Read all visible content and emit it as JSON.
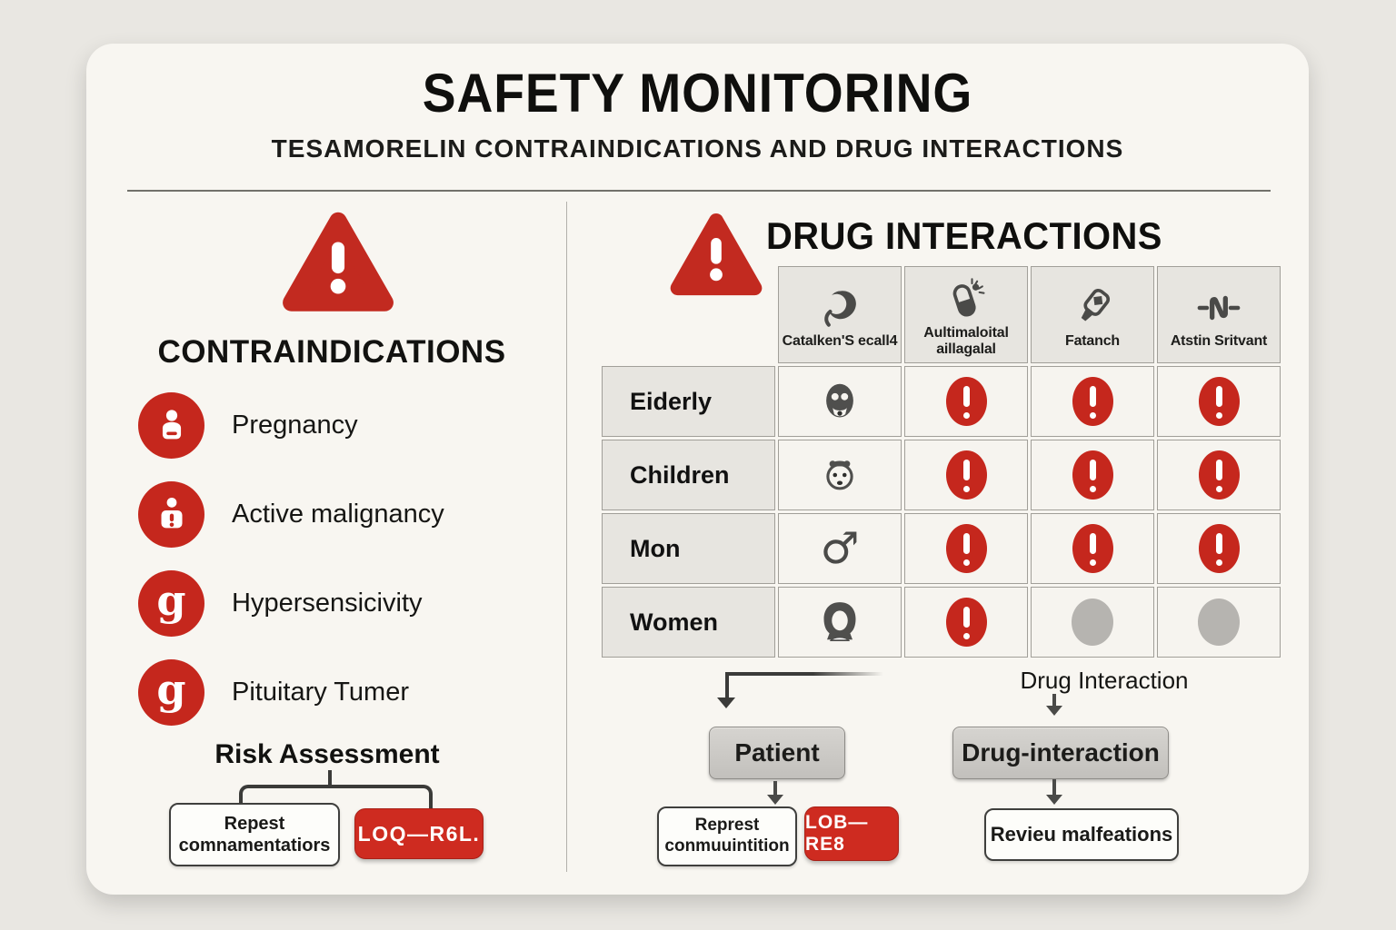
{
  "page": {
    "title": "SAFETY MONITORING",
    "subtitle": "TESAMORELIN CONTRAINDICATIONS AND DRUG INTERACTIONS"
  },
  "colors": {
    "accent_red": "#c5271d",
    "icon_gray": "#4a4a48",
    "card_bg": "#f8f6f1",
    "page_bg": "#e9e7e2"
  },
  "contraindications": {
    "heading": "CONTRAINDICATIONS",
    "warning_icon": "warning-triangle-icon",
    "items": [
      {
        "icon": "pregnant-person-icon",
        "label": "Pregnancy"
      },
      {
        "icon": "person-alert-icon",
        "label": "Active malignancy"
      },
      {
        "icon": "letter-g-icon",
        "label": "Hypersensicivity"
      },
      {
        "icon": "letter-g2-icon",
        "label": "Pituitary Tumer"
      }
    ],
    "risk_assessment": {
      "heading": "Risk Assessment",
      "repeat_box_label": "Repest\ncomnamentatiors",
      "log_button_label": "LOQ—R6L."
    }
  },
  "drug_interactions": {
    "heading": "DRUG INTERACTIONS",
    "warning_icon": "warning-triangle-icon",
    "columns": [
      {
        "icon": "comma-swirl-icon",
        "label": "Catalken'S ecall4"
      },
      {
        "icon": "pill-flower-icon",
        "label": "Aultimaloital\naillagalal"
      },
      {
        "icon": "injector-pen-icon",
        "label": "Fatanch"
      },
      {
        "icon": "wave-resistor-icon",
        "label": "Atstin Sritvant"
      }
    ],
    "rows": [
      {
        "label": "Eiderly",
        "icon": "elderly-face-icon",
        "cells": [
          "alert",
          "alert",
          "alert"
        ]
      },
      {
        "label": "Children",
        "icon": "child-face-icon",
        "cells": [
          "alert",
          "alert",
          "alert"
        ]
      },
      {
        "label": "Mon",
        "icon": "male-symbol-icon",
        "cells": [
          "alert",
          "alert",
          "alert"
        ]
      },
      {
        "label": "Women",
        "icon": "woman-face-icon",
        "cells": [
          "alert",
          "none",
          "none"
        ]
      }
    ]
  },
  "flowchart": {
    "drug_interaction_label": "Drug Interaction",
    "patient_node_label": "Patient",
    "drug_interaction_node_label": "Drug-interaction",
    "repeat_box_label": "Represt\nconmuuintition",
    "log_button_label": "LOB—RE8",
    "review_box_label": "Revieu malfeations"
  }
}
